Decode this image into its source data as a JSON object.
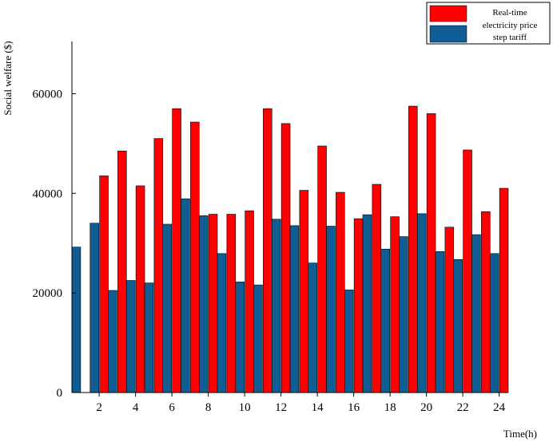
{
  "chart_data": {
    "type": "bar",
    "xlabel": "Time(h)",
    "ylabel": "Social welfare ($)",
    "x": [
      1,
      2,
      3,
      4,
      5,
      6,
      7,
      8,
      9,
      10,
      11,
      12,
      13,
      14,
      15,
      16,
      17,
      18,
      19,
      20,
      21,
      22,
      23,
      24
    ],
    "x_tick_labels": [
      "2",
      "4",
      "6",
      "8",
      "10",
      "12",
      "14",
      "16",
      "18",
      "20",
      "22",
      "24"
    ],
    "x_tick_values": [
      2,
      4,
      6,
      8,
      10,
      12,
      14,
      16,
      18,
      20,
      22,
      24
    ],
    "xlim": [
      0.5,
      24.5
    ],
    "ylim": [
      0,
      70000
    ],
    "y_ticks": [
      0,
      20000,
      40000,
      60000
    ],
    "y_tick_labels": [
      "0",
      "20000",
      "40000",
      "60000"
    ],
    "grid": false,
    "legend_position": "top-right",
    "series": [
      {
        "name": "Real-time electricity price",
        "legend_lines": [
          "Real-time",
          "electricity price"
        ],
        "color": "#ff0000",
        "values": [
          null,
          43500,
          48500,
          41500,
          51000,
          57000,
          54300,
          35800,
          35800,
          36500,
          57000,
          54000,
          40600,
          49500,
          40200,
          34900,
          41800,
          35300,
          57500,
          56000,
          33200,
          48700,
          36300,
          41000
        ]
      },
      {
        "name": "step tariff",
        "legend_lines": [
          "step tariff"
        ],
        "color": "#0f5d93",
        "values": [
          29200,
          34000,
          20500,
          22500,
          22000,
          33800,
          38900,
          35500,
          27900,
          22200,
          21600,
          34800,
          33500,
          26000,
          33400,
          20600,
          35700,
          28800,
          31300,
          35900,
          28300,
          26700,
          31700,
          27900
        ]
      }
    ]
  }
}
